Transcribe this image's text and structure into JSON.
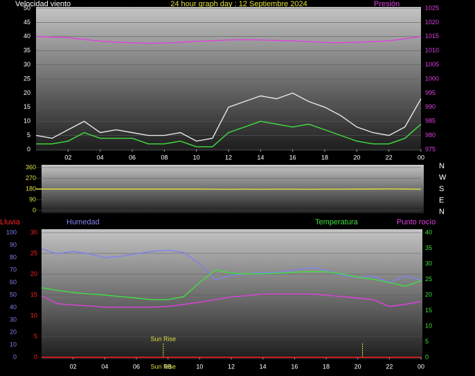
{
  "chart_data": [
    {
      "type": "line",
      "title": "24 hour graph day : 12 Septiembre 2024",
      "y_label": "Velocidad viento",
      "y2_label": "Presión",
      "x": [
        0,
        1,
        2,
        3,
        4,
        5,
        6,
        7,
        8,
        9,
        10,
        11,
        12,
        13,
        14,
        15,
        16,
        17,
        18,
        19,
        20,
        21,
        22,
        23,
        24
      ],
      "xlim": [
        0,
        24
      ],
      "xticks": [
        {
          "value": 2,
          "label": "02"
        },
        {
          "value": 4,
          "label": "04"
        },
        {
          "value": 6,
          "label": "06"
        },
        {
          "value": 8,
          "label": "08"
        },
        10,
        12,
        14,
        16,
        18,
        20,
        22,
        {
          "value": 24,
          "label": "00"
        }
      ],
      "ylim": [
        0,
        50
      ],
      "yticks": [
        0,
        5,
        10,
        15,
        20,
        25,
        30,
        35,
        40,
        45,
        50
      ],
      "y2lim": [
        975,
        1025
      ],
      "y2ticks": [
        975,
        980,
        985,
        990,
        995,
        1000,
        1005,
        1010,
        1015,
        1020,
        1025
      ],
      "grid": true,
      "series": [
        {
          "color": "#e8e8e8",
          "values": [
            5,
            4,
            7,
            10,
            6,
            7,
            6,
            5,
            5,
            6,
            3,
            4,
            15,
            17,
            19,
            18,
            20,
            17,
            15,
            12,
            8,
            6,
            5,
            8,
            18
          ]
        },
        {
          "color": "#40e040",
          "values": [
            2,
            2,
            3,
            6,
            4,
            4,
            4,
            2,
            2,
            3,
            1,
            1,
            6,
            8,
            10,
            9,
            8,
            9,
            7,
            5,
            3,
            2,
            2,
            4,
            9
          ]
        },
        {
          "color": "#e040e0",
          "axis": "y2",
          "values": [
            1015,
            1014.8,
            1014.6,
            1014,
            1013.4,
            1013,
            1012.8,
            1012.6,
            1012.7,
            1013,
            1013.3,
            1013.5,
            1013.8,
            1013.9,
            1013.8,
            1013.6,
            1013.5,
            1013.2,
            1012.9,
            1012.8,
            1013,
            1013.2,
            1013.5,
            1014.2,
            1015
          ]
        }
      ]
    },
    {
      "type": "line",
      "x": [
        0,
        1,
        2,
        3,
        4,
        5,
        6,
        7,
        8,
        9,
        10,
        11,
        12,
        13,
        14,
        15,
        16,
        17,
        18,
        19,
        20,
        21,
        22,
        23,
        24
      ],
      "xlim": [
        0,
        24
      ],
      "ylim": [
        0,
        360
      ],
      "yticks": [
        0,
        90,
        180,
        270,
        360
      ],
      "grid": true,
      "compass_labels": [
        "N",
        "W",
        "S",
        "E",
        "N"
      ],
      "series": [
        {
          "color": "#e0e040",
          "values": [
            180,
            180,
            180,
            180,
            180,
            180,
            180,
            180,
            180,
            180,
            180,
            179,
            178,
            179,
            178,
            179,
            179,
            178,
            179,
            179,
            180,
            180,
            181,
            180,
            179
          ]
        }
      ]
    },
    {
      "type": "line",
      "labels": {
        "rain": "Lluvia",
        "humidity": "Humedad",
        "temperature": "Temperatura",
        "dewpoint": "Punto rocío"
      },
      "x": [
        0,
        1,
        2,
        3,
        4,
        5,
        6,
        7,
        8,
        9,
        10,
        11,
        12,
        13,
        14,
        15,
        16,
        17,
        18,
        19,
        20,
        21,
        22,
        23,
        24
      ],
      "xlim": [
        0,
        24
      ],
      "xticks": [
        {
          "value": 2,
          "label": "02"
        },
        {
          "value": 4,
          "label": "04"
        },
        {
          "value": 6,
          "label": "06"
        },
        {
          "value": 8,
          "label": "08"
        },
        10,
        12,
        14,
        16,
        18,
        20,
        22,
        {
          "value": 24,
          "label": "00"
        }
      ],
      "ylim": [
        0,
        100
      ],
      "yticks": [
        0,
        10,
        20,
        30,
        40,
        50,
        60,
        70,
        80,
        90,
        100
      ],
      "y3lim": [
        0,
        30
      ],
      "y3ticks": [
        0,
        5,
        10,
        15,
        20,
        25,
        30
      ],
      "y2lim": [
        0,
        40
      ],
      "y2ticks": [
        0,
        5,
        10,
        15,
        20,
        25,
        30,
        35,
        40
      ],
      "grid": true,
      "series": [
        {
          "color": "#8080f0",
          "values": [
            87,
            83,
            85,
            83,
            80,
            81,
            83,
            85,
            86,
            84,
            75,
            62,
            66,
            67,
            68,
            68,
            70,
            72,
            70,
            66,
            64,
            65,
            60,
            65,
            62
          ]
        },
        {
          "color": "#40e040",
          "axis": "y2",
          "values": [
            22.3,
            21.5,
            20.8,
            20.3,
            20,
            19.5,
            19,
            18.5,
            18.5,
            19.5,
            24,
            28,
            27,
            26.8,
            26.8,
            27,
            27.3,
            27.5,
            27.5,
            26.8,
            25.7,
            25,
            24,
            22.8,
            24.6
          ]
        },
        {
          "color": "#e040e0",
          "axis": "y2",
          "values": [
            19.7,
            17.2,
            16.8,
            16.5,
            16.1,
            16.1,
            16.1,
            16.1,
            16.3,
            17,
            17.7,
            18.5,
            19.4,
            19.8,
            20.3,
            20.3,
            20.3,
            20.3,
            20,
            19.5,
            19,
            18.5,
            16.3,
            17,
            17.9
          ]
        },
        {
          "color": "#ff2020",
          "axis": "y3",
          "values": [
            0,
            0,
            0,
            0,
            0,
            0,
            0,
            0,
            0,
            0,
            0,
            0,
            0,
            0,
            0,
            0,
            0,
            0,
            0,
            0,
            0,
            0,
            0,
            0,
            0
          ]
        }
      ],
      "sun_markers": [
        {
          "x": 7.7,
          "label": "Sun Rise",
          "axis_label": "Sun Rise"
        },
        {
          "x": 20.3
        }
      ]
    }
  ]
}
